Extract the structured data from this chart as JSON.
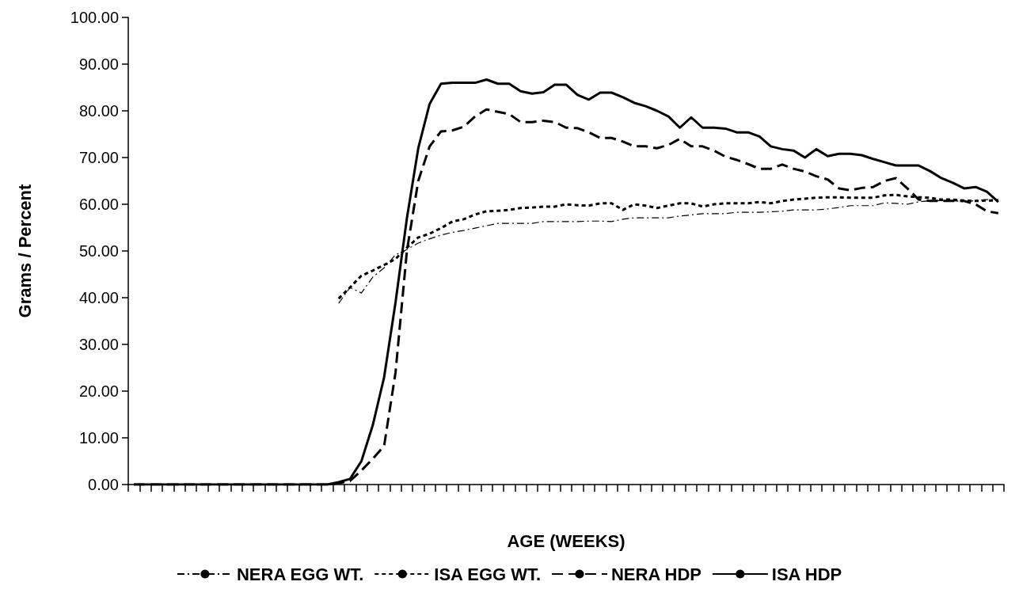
{
  "chart_data": {
    "type": "line",
    "xlabel": "AGE (WEEKS)",
    "ylabel": "Grams / Percent",
    "categories": [
      null,
      null,
      null,
      null,
      null,
      null,
      null,
      null,
      null,
      null,
      null,
      null,
      null,
      null,
      null,
      null,
      null,
      null,
      null,
      null,
      null,
      null,
      null,
      null,
      null,
      null,
      null,
      null,
      null,
      null,
      null,
      null,
      null,
      null,
      null,
      null,
      null,
      null,
      null,
      null,
      null,
      null,
      null,
      null,
      null,
      null,
      null,
      null,
      null,
      null,
      null,
      null,
      null,
      null,
      null,
      null,
      null,
      null,
      null,
      null,
      null,
      null,
      null,
      null,
      null,
      null,
      null,
      null,
      null,
      null,
      null,
      null,
      null,
      null,
      null,
      null,
      null
    ],
    "ylim": [
      0,
      100
    ],
    "yticks": [
      {
        "value": 0,
        "label": "0.00"
      },
      {
        "value": 10,
        "label": "10.00"
      },
      {
        "value": 20,
        "label": "20.00"
      },
      {
        "value": 30,
        "label": "30.00"
      },
      {
        "value": 40,
        "label": "40.00"
      },
      {
        "value": 50,
        "label": "50.00"
      },
      {
        "value": 60,
        "label": "60.00"
      },
      {
        "value": 70,
        "label": "70.00"
      },
      {
        "value": 80,
        "label": "80.00"
      },
      {
        "value": 90,
        "label": "90.00"
      },
      {
        "value": 100,
        "label": "100.00"
      }
    ],
    "grid": false,
    "legend": "bottom",
    "marker": "none",
    "series": [
      {
        "name": "NERA EGG WT.",
        "color": "#000000",
        "line_style": "dashdot",
        "values": [
          null,
          null,
          null,
          null,
          null,
          null,
          null,
          null,
          null,
          null,
          null,
          null,
          null,
          null,
          null,
          null,
          null,
          null,
          38.8,
          42.2,
          41,
          44.4,
          46.4,
          49.2,
          50.3,
          51.7,
          52.6,
          53.4,
          54,
          54.4,
          54.9,
          55.4,
          55.9,
          55.9,
          55.9,
          55.9,
          56.3,
          56.3,
          56.3,
          56.3,
          56.4,
          56.4,
          56.3,
          56.8,
          57.1,
          57.1,
          57.1,
          57.1,
          57.5,
          57.7,
          58,
          58,
          58,
          58.3,
          58.3,
          58.3,
          58.4,
          58.5,
          58.8,
          58.8,
          58.8,
          59,
          59.3,
          59.7,
          59.7,
          59.7,
          60.3,
          60.2,
          60,
          60.5,
          60.8,
          60.8,
          60.8,
          60.5,
          60.8,
          61,
          61
        ]
      },
      {
        "name": "ISA EGG WT.",
        "color": "#000000",
        "line_style": "dotted",
        "values": [
          null,
          null,
          null,
          null,
          null,
          null,
          null,
          null,
          null,
          null,
          null,
          null,
          null,
          null,
          null,
          null,
          null,
          null,
          39.8,
          42.2,
          44.7,
          45.8,
          47,
          48.3,
          50.7,
          52.9,
          53.7,
          54.9,
          56.3,
          56.8,
          57.8,
          58.5,
          58.6,
          58.8,
          59.2,
          59.3,
          59.5,
          59.5,
          60,
          59.8,
          59.7,
          60.2,
          60.2,
          58.8,
          60,
          59.7,
          59.2,
          59.7,
          60.2,
          60.2,
          59.5,
          60,
          60.2,
          60.2,
          60.2,
          60.5,
          60.2,
          60.7,
          61,
          61.2,
          61.4,
          61.5,
          61.5,
          61.4,
          61.4,
          61.4,
          61.9,
          62,
          61.7,
          61.5,
          61.4,
          61,
          61,
          60.8,
          60.7,
          60.8,
          60.8
        ]
      },
      {
        "name": "NERA HDP",
        "color": "#000000",
        "line_style": "dashed",
        "values": [
          0,
          0,
          0,
          0,
          0,
          0,
          0,
          0,
          0,
          0,
          0,
          0,
          0,
          0,
          0,
          0,
          0,
          0,
          0.3,
          0.8,
          3,
          5.5,
          8.3,
          24,
          50,
          65,
          72.4,
          75.6,
          75.8,
          76.6,
          78.8,
          80.3,
          79.8,
          79.3,
          77.6,
          77.6,
          77.9,
          77.6,
          76.4,
          76.3,
          75.4,
          74.2,
          74.2,
          73.4,
          72.4,
          72.4,
          72,
          72.7,
          74,
          72.4,
          72.4,
          71.5,
          70.2,
          69.5,
          68.6,
          67.6,
          67.6,
          68.5,
          67.6,
          67,
          66,
          65.3,
          63.4,
          63,
          63.5,
          63.7,
          65,
          65.6,
          63.4,
          61,
          60.7,
          60.7,
          60.7,
          60.7,
          60,
          58.5,
          58.1
        ]
      },
      {
        "name": "ISA HDP",
        "color": "#000000",
        "line_style": "solid",
        "values": [
          0,
          0,
          0,
          0,
          0,
          0,
          0,
          0,
          0,
          0,
          0,
          0,
          0,
          0,
          0,
          0,
          0,
          0,
          0.5,
          1.2,
          5,
          12.7,
          23,
          39,
          57,
          72,
          81.5,
          85.8,
          86,
          86,
          86,
          86.7,
          85.8,
          85.8,
          84.2,
          83.7,
          84,
          85.6,
          85.6,
          83.4,
          82.4,
          83.9,
          83.9,
          82.9,
          81.7,
          81,
          80,
          78.8,
          76.4,
          78.6,
          76.4,
          76.4,
          76.2,
          75.4,
          75.4,
          74.5,
          72.4,
          71.8,
          71.5,
          70,
          71.8,
          70.3,
          70.8,
          70.8,
          70.5,
          69.7,
          69,
          68.3,
          68.3,
          68.3,
          67.1,
          65.6,
          64.6,
          63.4,
          63.7,
          62.7,
          60.5
        ]
      }
    ]
  }
}
